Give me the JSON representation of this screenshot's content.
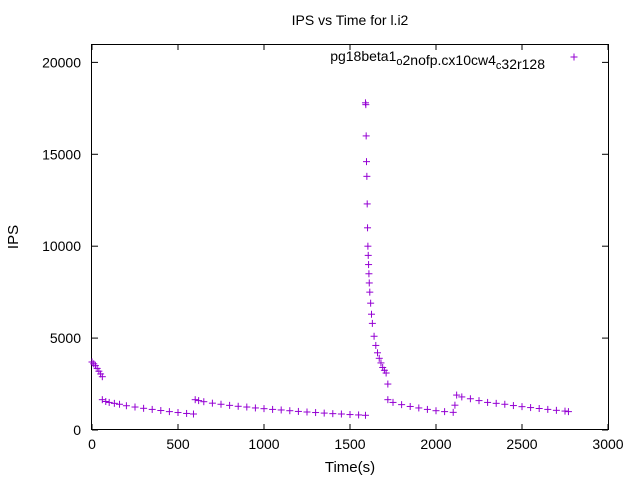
{
  "chart_data": {
    "type": "scatter",
    "title": "IPS vs Time for l.i2",
    "xlabel": "Time(s)",
    "ylabel": "IPS",
    "xlim": [
      0,
      3000
    ],
    "ylim": [
      0,
      21000
    ],
    "xticks": [
      "0",
      "500",
      "1000",
      "1500",
      "2000",
      "2500",
      "3000"
    ],
    "yticks": [
      "0",
      "5000",
      "10000",
      "15000",
      "20000"
    ],
    "grid": false,
    "legend_position": "top-right",
    "marker": "plus",
    "color": "#9400d3",
    "series": [
      {
        "name_parts": [
          {
            "text": "pg18beta1",
            "sub": false
          },
          {
            "text": "o",
            "sub": true
          },
          {
            "text": "2nofp.cx10cw4",
            "sub": false
          },
          {
            "text": "c",
            "sub": true
          },
          {
            "text": "32r128",
            "sub": false
          }
        ],
        "x": [
          0,
          10,
          20,
          30,
          40,
          50,
          60,
          60,
          80,
          100,
          130,
          160,
          200,
          250,
          300,
          350,
          400,
          450,
          500,
          550,
          590,
          600,
          620,
          650,
          700,
          750,
          800,
          850,
          900,
          950,
          1000,
          1050,
          1100,
          1150,
          1200,
          1250,
          1300,
          1350,
          1400,
          1450,
          1500,
          1550,
          1590,
          1590,
          1592,
          1594,
          1596,
          1598,
          1600,
          1602,
          1604,
          1606,
          1608,
          1610,
          1612,
          1615,
          1620,
          1625,
          1630,
          1640,
          1650,
          1660,
          1670,
          1680,
          1690,
          1700,
          1710,
          1720,
          1720,
          1750,
          1800,
          1850,
          1900,
          1950,
          2000,
          2050,
          2100,
          2110,
          2120,
          2150,
          2200,
          2250,
          2300,
          2350,
          2400,
          2450,
          2500,
          2550,
          2600,
          2650,
          2700,
          2750,
          2770
        ],
        "y": [
          3700,
          3600,
          3500,
          3350,
          3200,
          3050,
          2900,
          1650,
          1550,
          1500,
          1450,
          1400,
          1320,
          1250,
          1180,
          1120,
          1060,
          1000,
          950,
          900,
          870,
          1650,
          1600,
          1540,
          1460,
          1400,
          1340,
          1290,
          1250,
          1200,
          1160,
          1120,
          1090,
          1050,
          1010,
          980,
          950,
          920,
          890,
          870,
          840,
          820,
          800,
          17800,
          17700,
          16000,
          14600,
          13800,
          12300,
          11000,
          10000,
          9500,
          9000,
          8500,
          8000,
          7500,
          6900,
          6300,
          5800,
          5100,
          4600,
          4200,
          3900,
          3650,
          3400,
          3250,
          3100,
          2500,
          1650,
          1500,
          1380,
          1280,
          1200,
          1120,
          1050,
          1000,
          960,
          1350,
          1900,
          1800,
          1700,
          1600,
          1500,
          1450,
          1400,
          1330,
          1270,
          1220,
          1170,
          1120,
          1070,
          1030,
          1000
        ]
      }
    ]
  }
}
